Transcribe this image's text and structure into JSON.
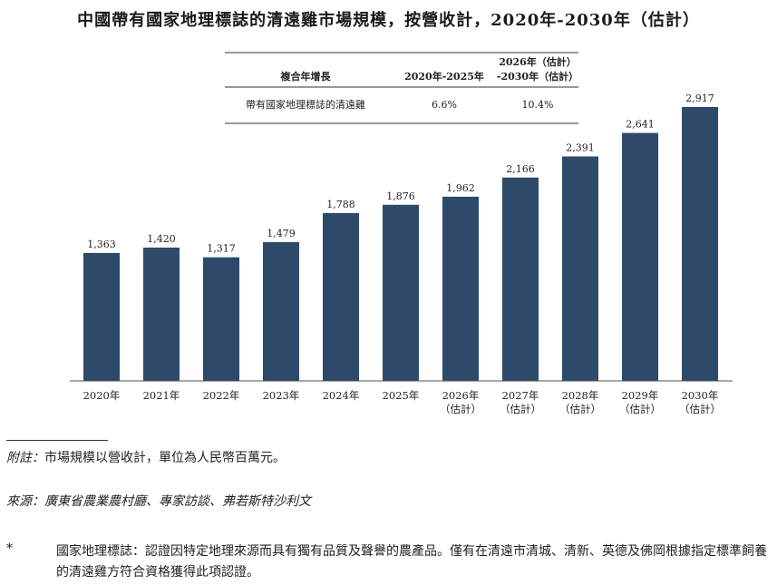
{
  "title": "中國帶有國家地理標誌的清遠雞市場規模，按營收計，2020年-2030年（估計）",
  "cagr_table": {
    "header_label": "複合年增長",
    "col1_header": "2020年-2025年",
    "col2_header_line1": "2026年（估計）",
    "col2_header_line2": "-2030年（估計）",
    "row_label": "帶有國家地理標誌的清遠雞",
    "col1_value": "6.6%",
    "col2_value": "10.4%"
  },
  "chart_data": {
    "type": "bar",
    "categories": [
      "2020年",
      "2021年",
      "2022年",
      "2023年",
      "2024年",
      "2025年",
      "2026年\n（估計）",
      "2027年\n（估計）",
      "2028年\n（估計）",
      "2029年\n（估計）",
      "2030年\n（估計）"
    ],
    "values": [
      1363,
      1420,
      1317,
      1479,
      1788,
      1876,
      1962,
      2166,
      2391,
      2641,
      2917
    ],
    "value_labels": [
      "1,363",
      "1,420",
      "1,317",
      "1,479",
      "1,788",
      "1,876",
      "1,962",
      "2,166",
      "2,391",
      "2,641",
      "2,917"
    ],
    "bar_color": "#2e4a6b",
    "ylim": [
      0,
      3000
    ],
    "grid": false,
    "title": "",
    "xlabel": "",
    "ylabel": ""
  },
  "notes": {
    "note_label": "附註：",
    "note_text": "市場規模以營收計，單位為人民幣百萬元。",
    "source_label": "來源：",
    "source_text": "廣東省農業農村廳、專家訪談、弗若斯特沙利文",
    "footnote_mark": "*",
    "footnote_text": "國家地理標誌：認證因特定地理來源而具有獨有品質及聲譽的農產品。僅有在清遠市清城、清新、英德及佛岡根據指定標準飼養的清遠雞方符合資格獲得此項認證。"
  }
}
